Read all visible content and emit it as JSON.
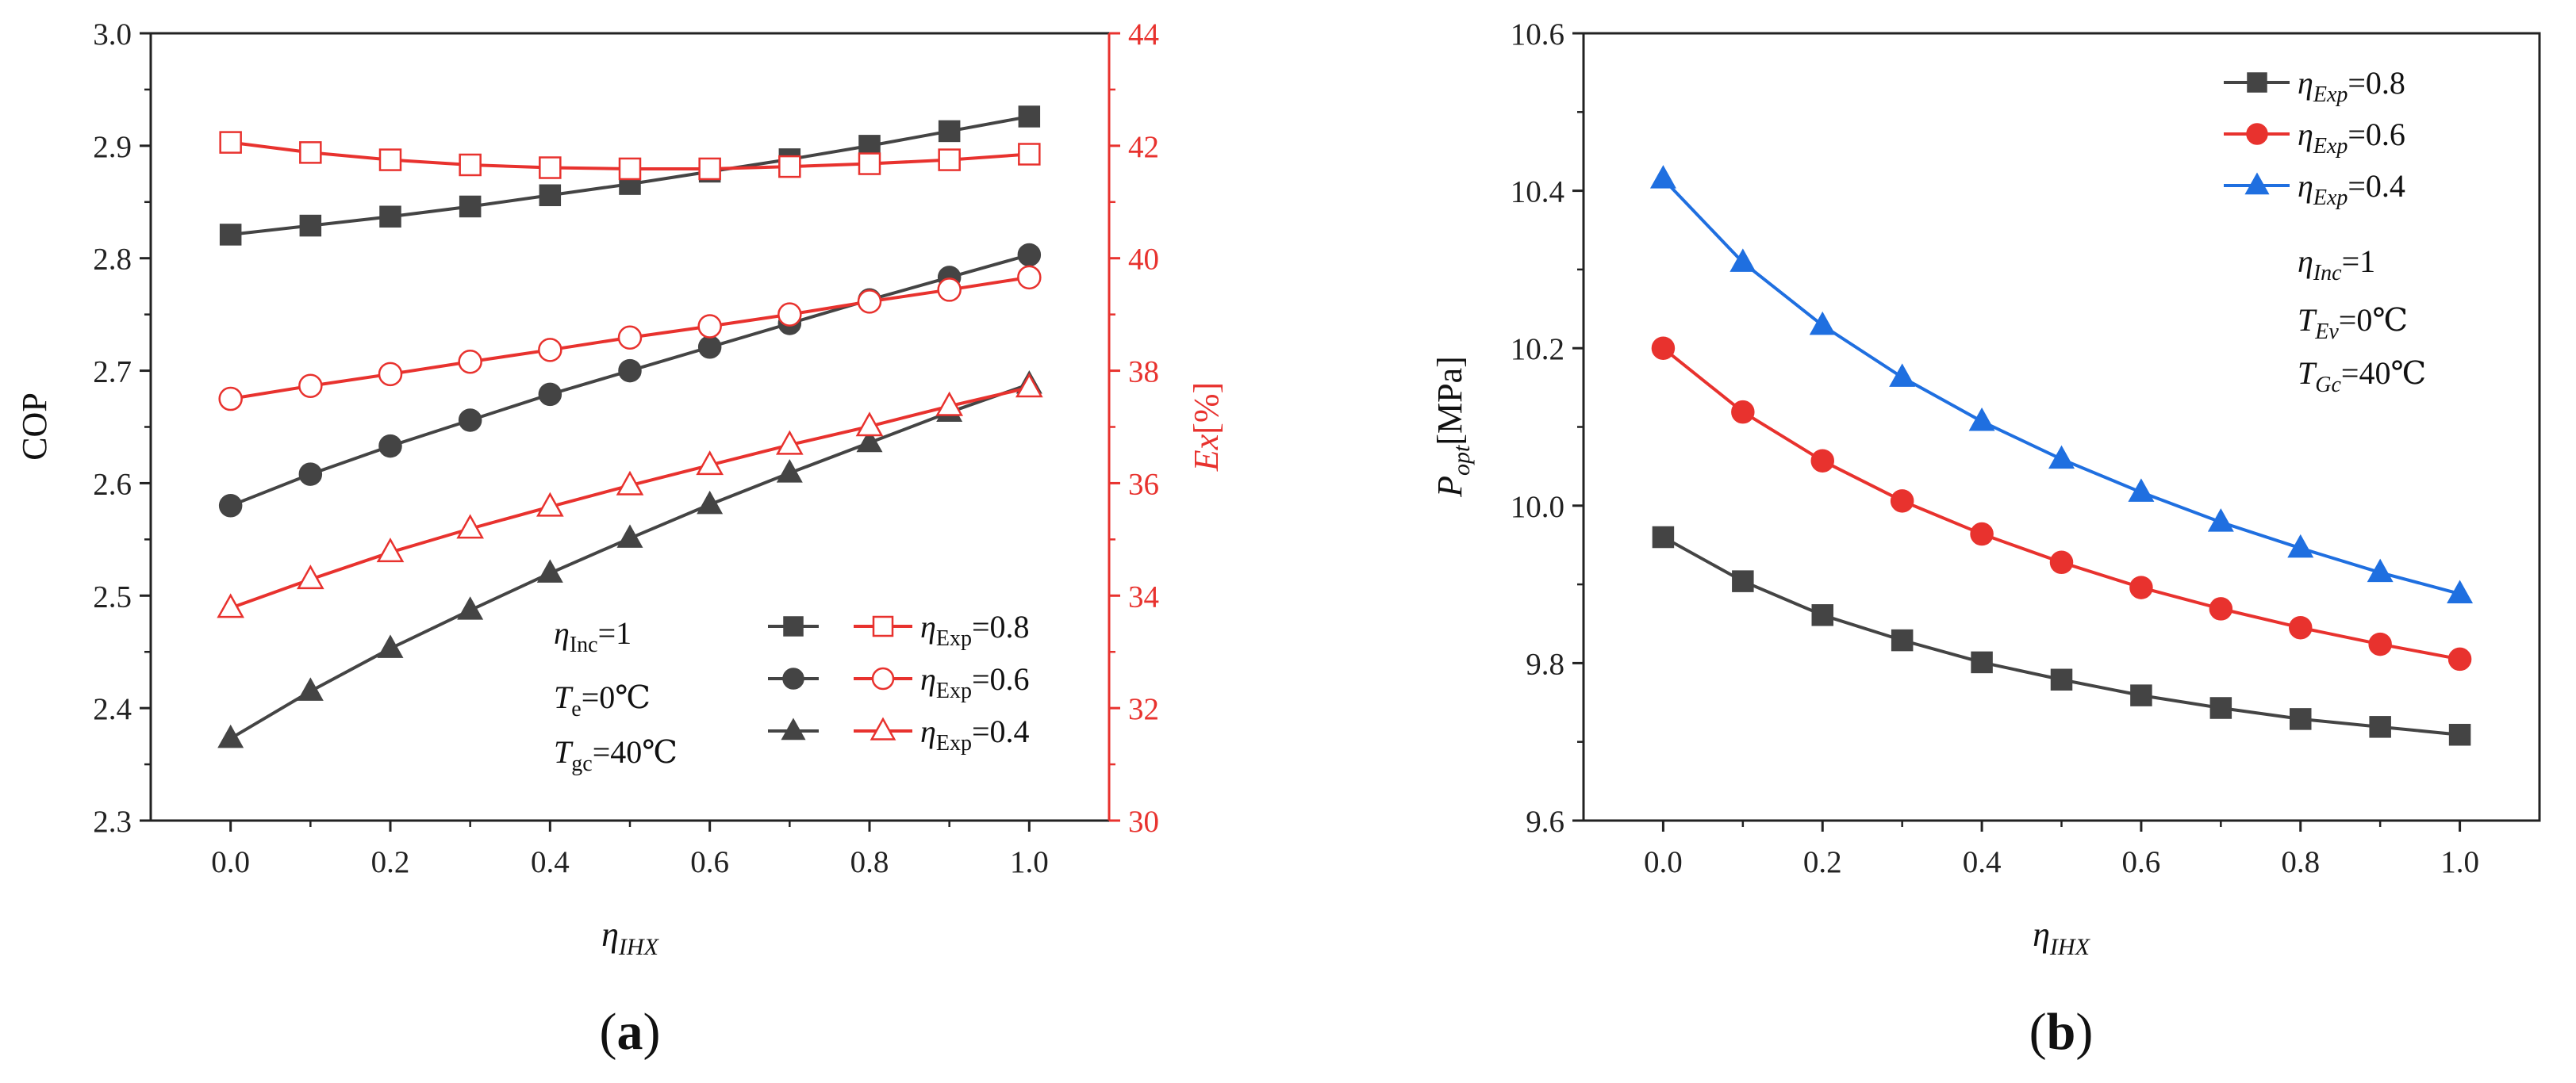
{
  "chart_data": [
    {
      "type": "line",
      "panel_label": "(a)",
      "xlabel": "η_IHX",
      "x": [
        0.0,
        0.1,
        0.2,
        0.3,
        0.4,
        0.5,
        0.6,
        0.7,
        0.8,
        0.9,
        1.0
      ],
      "xlim": [
        -0.1,
        1.1
      ],
      "xticks": [
        "0.0",
        "0.2",
        "0.4",
        "0.6",
        "0.8",
        "1.0"
      ],
      "ylabel_left": "COP",
      "ylim_left": [
        2.3,
        3.0
      ],
      "yticks_left": [
        "2.3",
        "2.4",
        "2.5",
        "2.6",
        "2.7",
        "2.8",
        "2.9",
        "3.0"
      ],
      "ylabel_right": "Ex[%]",
      "ylim_right": [
        30,
        44
      ],
      "yticks_right": [
        "30",
        "32",
        "34",
        "36",
        "38",
        "40",
        "42",
        "44"
      ],
      "grid": false,
      "series": [
        {
          "name": "COP η_Exp=0.8",
          "axis": "left",
          "color": "#444444",
          "marker": "square-filled",
          "values": [
            2.821,
            2.829,
            2.837,
            2.846,
            2.856,
            2.866,
            2.877,
            2.888,
            2.9,
            2.913,
            2.926
          ]
        },
        {
          "name": "COP η_Exp=0.6",
          "axis": "left",
          "color": "#444444",
          "marker": "circle-filled",
          "values": [
            2.58,
            2.608,
            2.633,
            2.656,
            2.679,
            2.7,
            2.721,
            2.742,
            2.763,
            2.783,
            2.803
          ]
        },
        {
          "name": "COP η_Exp=0.4",
          "axis": "left",
          "color": "#444444",
          "marker": "triangle-filled",
          "values": [
            2.373,
            2.415,
            2.453,
            2.487,
            2.52,
            2.551,
            2.581,
            2.609,
            2.636,
            2.663,
            2.688
          ]
        },
        {
          "name": "Ex η_Exp=0.8",
          "axis": "right",
          "color": "#e8322e",
          "marker": "square-open",
          "values": [
            42.06,
            41.88,
            41.75,
            41.66,
            41.61,
            41.59,
            41.59,
            41.63,
            41.68,
            41.75,
            41.85
          ]
        },
        {
          "name": "Ex η_Exp=0.6",
          "axis": "right",
          "color": "#e8322e",
          "marker": "circle-open",
          "values": [
            37.5,
            37.73,
            37.94,
            38.16,
            38.37,
            38.59,
            38.79,
            39.0,
            39.23,
            39.44,
            39.66
          ]
        },
        {
          "name": "Ex η_Exp=0.4",
          "axis": "right",
          "color": "#e8322e",
          "marker": "triangle-open",
          "values": [
            33.78,
            34.29,
            34.77,
            35.19,
            35.58,
            35.96,
            36.32,
            36.68,
            37.01,
            37.37,
            37.7
          ]
        }
      ],
      "legend": {
        "position": "bottom-right",
        "entries": [
          {
            "eta": "η",
            "sub": "Exp",
            "value": "=0.8"
          },
          {
            "eta": "η",
            "sub": "Exp",
            "value": "=0.6"
          },
          {
            "eta": "η",
            "sub": "Exp",
            "value": "=0.4"
          }
        ]
      },
      "annotations": [
        {
          "main": "η",
          "sub": "Inc",
          "rest": "=1"
        },
        {
          "main": "T",
          "sub": "e",
          "rest": "=0℃"
        },
        {
          "main": "T",
          "sub": "gc",
          "rest": "=40℃"
        }
      ]
    },
    {
      "type": "line",
      "panel_label": "(b)",
      "xlabel": "η_IHX",
      "x": [
        0.0,
        0.1,
        0.2,
        0.3,
        0.4,
        0.5,
        0.6,
        0.7,
        0.8,
        0.9,
        1.0
      ],
      "xlim": [
        -0.1,
        1.1
      ],
      "xticks": [
        "0.0",
        "0.2",
        "0.4",
        "0.6",
        "0.8",
        "1.0"
      ],
      "ylabel": "P_opt[MPa]",
      "ylim": [
        9.6,
        10.6
      ],
      "yticks": [
        "9.6",
        "9.8",
        "10.0",
        "10.2",
        "10.4",
        "10.6"
      ],
      "grid": false,
      "series": [
        {
          "name": "η_Exp=0.8",
          "color": "#444444",
          "marker": "square-filled",
          "values": [
            9.96,
            9.904,
            9.861,
            9.829,
            9.801,
            9.779,
            9.759,
            9.743,
            9.729,
            9.719,
            9.709
          ]
        },
        {
          "name": "η_Exp=0.6",
          "color": "#e8322e",
          "marker": "circle-filled",
          "values": [
            10.2,
            10.119,
            10.057,
            10.006,
            9.964,
            9.928,
            9.896,
            9.869,
            9.845,
            9.824,
            9.805
          ]
        },
        {
          "name": "η_Exp=0.4",
          "color": "#1f6fe0",
          "marker": "triangle-filled",
          "values": [
            10.415,
            10.309,
            10.229,
            10.163,
            10.107,
            10.059,
            10.017,
            9.979,
            9.946,
            9.915,
            9.888
          ]
        }
      ],
      "legend": {
        "position": "top-right",
        "entries": [
          {
            "eta": "η",
            "sub": "Exp",
            "value": "=0.8"
          },
          {
            "eta": "η",
            "sub": "Exp",
            "value": "=0.6"
          },
          {
            "eta": "η",
            "sub": "Exp",
            "value": "=0.4"
          }
        ]
      },
      "annotations": [
        {
          "main": "η",
          "sub": "Inc",
          "rest": "=1"
        },
        {
          "main": "T",
          "sub": "Ev",
          "rest": "=0℃"
        },
        {
          "main": "T",
          "sub": "Gc",
          "rest": "=40℃"
        }
      ]
    }
  ],
  "labels": {
    "a_ylabel_left": "COP",
    "a_ylabel_right_main": "Ex",
    "a_ylabel_right_rest": "[%]",
    "xlabel_main": "η",
    "xlabel_sub": "IHX",
    "b_ylabel_main": "P",
    "b_ylabel_sub": "opt",
    "b_ylabel_rest": "[MPa]",
    "panel_a_open": "(",
    "panel_a_letter": "a",
    "panel_a_close": ")",
    "panel_b_open": "(",
    "panel_b_letter": "b",
    "panel_b_close": ")"
  }
}
